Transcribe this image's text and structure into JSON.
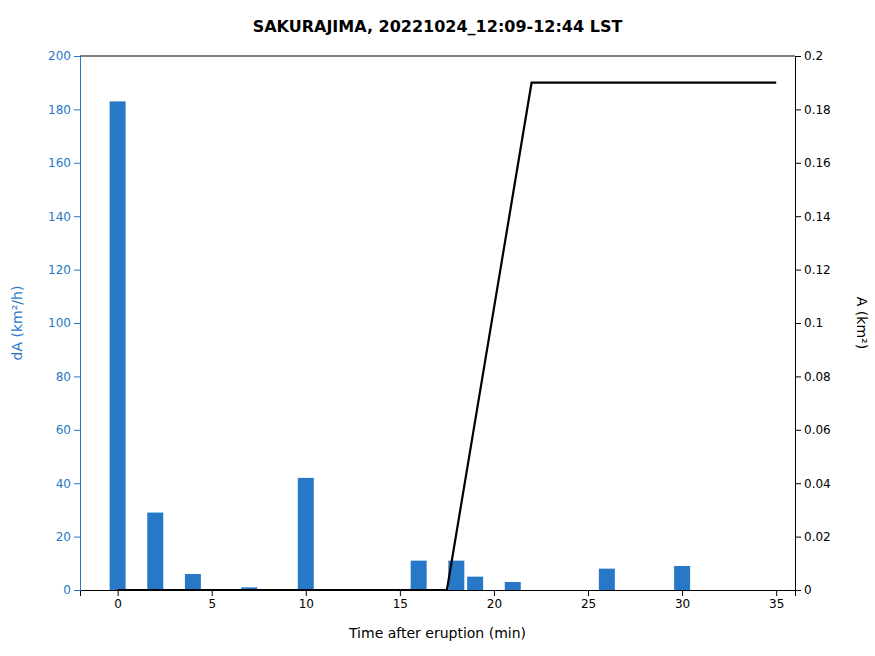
{
  "chart_data": {
    "type": "bar",
    "title": "SAKURAJIMA, 20221024_12:09-12:44 LST",
    "x_label": "Time after eruption (min)",
    "y_label": "dA (km²/h)",
    "y2_label": "A (km²)",
    "x": [
      0,
      2,
      4,
      7,
      10,
      16,
      18,
      19,
      21,
      22,
      26,
      30
    ],
    "series": [
      {
        "type": "bar",
        "color": "#2878c8",
        "values": [
          183,
          29,
          6,
          1,
          42,
          11,
          11,
          5,
          3,
          0,
          8,
          9
        ]
      },
      {
        "type": "line",
        "axis": "y2",
        "color": "black",
        "x": [
          0,
          17.5,
          22,
          35
        ],
        "values": [
          0,
          0,
          0.19,
          0.19
        ]
      }
    ],
    "xlim": [
      -2,
      36
    ],
    "xticks": [
      0,
      5,
      10,
      15,
      20,
      25,
      30,
      35
    ],
    "ylim": [
      0,
      200
    ],
    "yticks": [
      0,
      20,
      40,
      60,
      80,
      100,
      120,
      140,
      160,
      180,
      200
    ],
    "y2lim": [
      0,
      0.2
    ],
    "y2ticks": [
      0,
      0.02,
      0.04,
      0.06,
      0.08,
      0.1,
      0.12,
      0.14,
      0.16,
      0.18,
      0.2
    ]
  }
}
